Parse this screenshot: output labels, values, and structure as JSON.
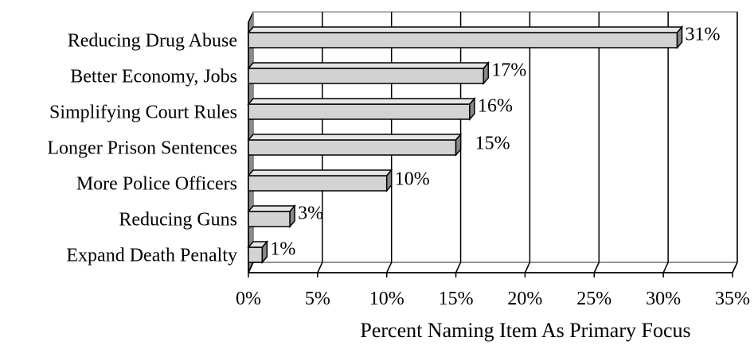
{
  "chart_data": {
    "type": "bar",
    "orientation": "horizontal",
    "style": "3d",
    "categories": [
      "Reducing Drug Abuse",
      "Better Economy, Jobs",
      "Simplifying Court Rules",
      "Longer Prison Sentences",
      "More Police Officers",
      "Reducing Guns",
      "Expand Death Penalty"
    ],
    "values": [
      31,
      17,
      16,
      15,
      10,
      3,
      1
    ],
    "value_labels": [
      "31%",
      "17%",
      "16%",
      "15%",
      "10%",
      "3%",
      "1%"
    ],
    "xlabel": "Percent Naming Item As Primary Focus",
    "xlim": [
      0,
      35
    ],
    "x_ticks": [
      0,
      5,
      10,
      15,
      20,
      25,
      30,
      35
    ],
    "x_tick_labels": [
      "0%",
      "5%",
      "10%",
      "15%",
      "20%",
      "25%",
      "30%",
      "35%"
    ],
    "grid": "vertical",
    "colors": {
      "bar_face": "#d3d3d3",
      "bar_top": "#e6e6e6",
      "bar_side": "#8a8a8a",
      "wall": "#8c8c8c",
      "floor": "#ffffff",
      "grid": "#000000",
      "outline": "#000000"
    }
  }
}
